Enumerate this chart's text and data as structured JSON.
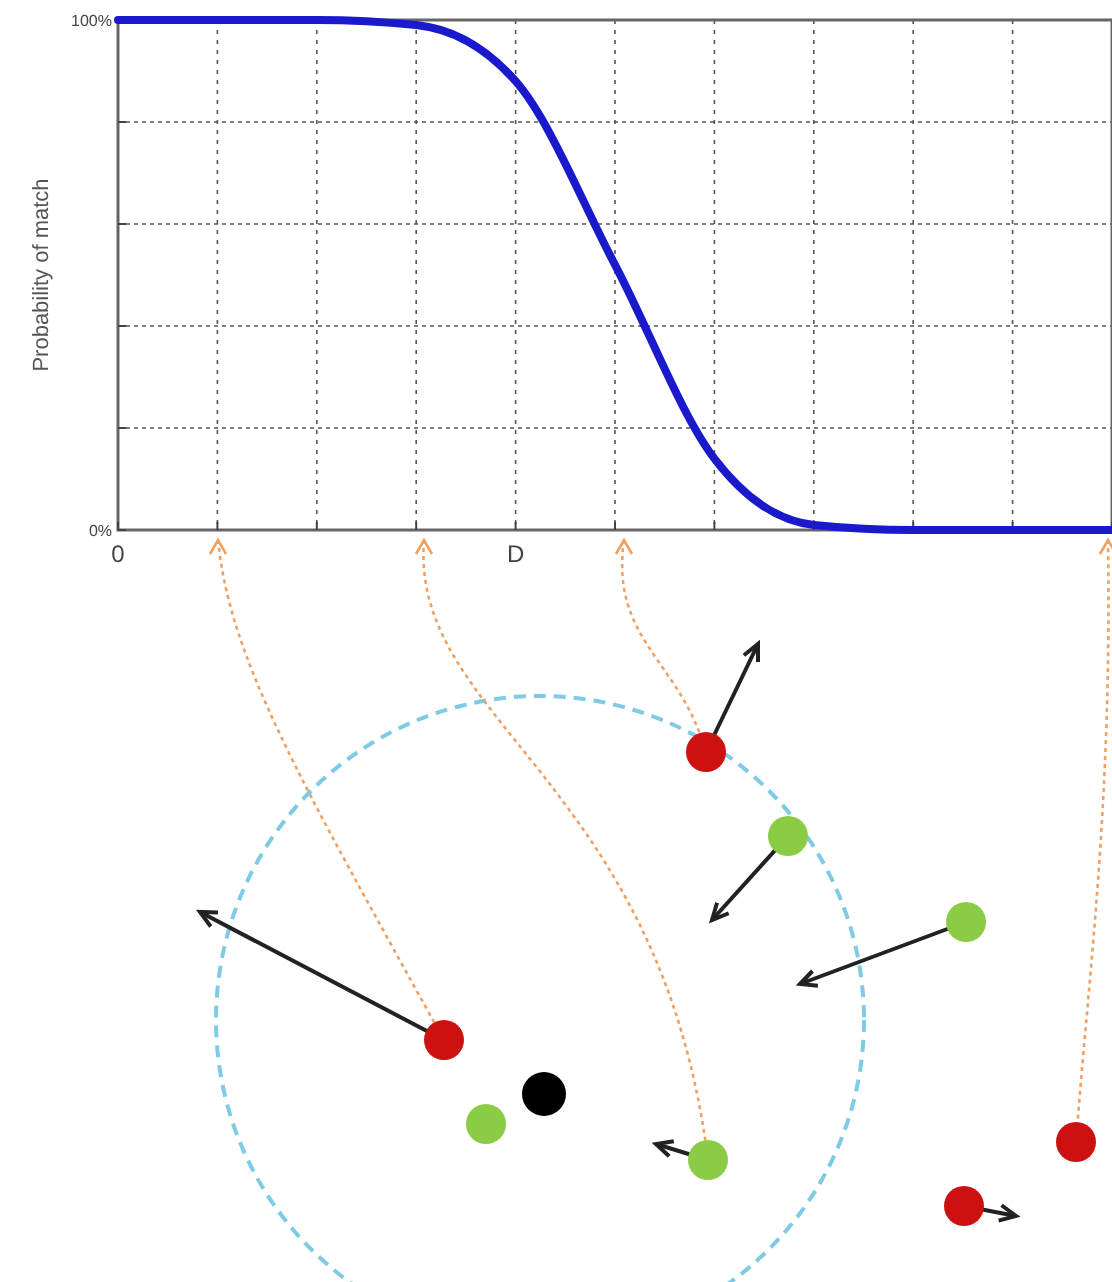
{
  "chart_data": {
    "type": "line",
    "ylabel": "Probability of match",
    "categories": [
      "0",
      null,
      null,
      null,
      "D",
      null,
      null,
      null,
      null,
      null,
      null
    ],
    "series": [
      {
        "color": "#1a1acc",
        "values": [
          100,
          100,
          100,
          99,
          88,
          52,
          14,
          1,
          0,
          0,
          0
        ]
      }
    ],
    "ylim": [
      0,
      100
    ],
    "yticks": [
      {
        "value": 0,
        "label": "0%"
      },
      {
        "value": 20,
        "label": null
      },
      {
        "value": 40,
        "label": null
      },
      {
        "value": 60,
        "label": null
      },
      {
        "value": 80,
        "label": null
      },
      {
        "value": 100,
        "label": "100%"
      }
    ],
    "grid": true,
    "marker": "none",
    "line_style": "solid"
  }
}
